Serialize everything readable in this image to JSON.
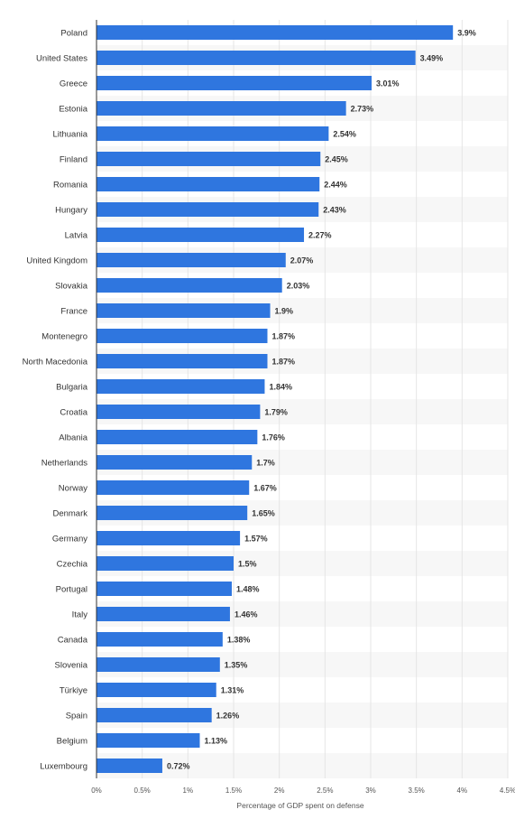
{
  "chart_data": {
    "type": "bar",
    "orientation": "horizontal",
    "categories": [
      "Poland",
      "United States",
      "Greece",
      "Estonia",
      "Lithuania",
      "Finland",
      "Romania",
      "Hungary",
      "Latvia",
      "United Kingdom",
      "Slovakia",
      "France",
      "Montenegro",
      "North Macedonia",
      "Bulgaria",
      "Croatia",
      "Albania",
      "Netherlands",
      "Norway",
      "Denmark",
      "Germany",
      "Czechia",
      "Portugal",
      "Italy",
      "Canada",
      "Slovenia",
      "Türkiye",
      "Spain",
      "Belgium",
      "Luxembourg"
    ],
    "values": [
      3.9,
      3.49,
      3.01,
      2.73,
      2.54,
      2.45,
      2.44,
      2.43,
      2.27,
      2.07,
      2.03,
      1.9,
      1.87,
      1.87,
      1.84,
      1.79,
      1.76,
      1.7,
      1.67,
      1.65,
      1.57,
      1.5,
      1.48,
      1.46,
      1.38,
      1.35,
      1.31,
      1.26,
      1.13,
      0.72
    ],
    "value_labels": [
      "3.9%",
      "3.49%",
      "3.01%",
      "2.73%",
      "2.54%",
      "2.45%",
      "2.44%",
      "2.43%",
      "2.27%",
      "2.07%",
      "2.03%",
      "1.9%",
      "1.87%",
      "1.87%",
      "1.84%",
      "1.79%",
      "1.76%",
      "1.7%",
      "1.67%",
      "1.65%",
      "1.57%",
      "1.5%",
      "1.48%",
      "1.46%",
      "1.38%",
      "1.35%",
      "1.31%",
      "1.26%",
      "1.13%",
      "0.72%"
    ],
    "xlim": [
      0,
      4.5
    ],
    "x_ticks": [
      0,
      0.5,
      1,
      1.5,
      2,
      2.5,
      3,
      3.5,
      4,
      4.5
    ],
    "x_tick_labels": [
      "0%",
      "0.5%",
      "1%",
      "1.5%",
      "2%",
      "2.5%",
      "3%",
      "3.5%",
      "4%",
      "4.5%"
    ],
    "xlabel": "Percentage of GDP spent on defense",
    "title": "",
    "grid": true,
    "bar_color": "#2f76df",
    "stripe_color": "#f7f7f7",
    "grid_color": "#e6e6e6",
    "axis_color": "#333333"
  }
}
